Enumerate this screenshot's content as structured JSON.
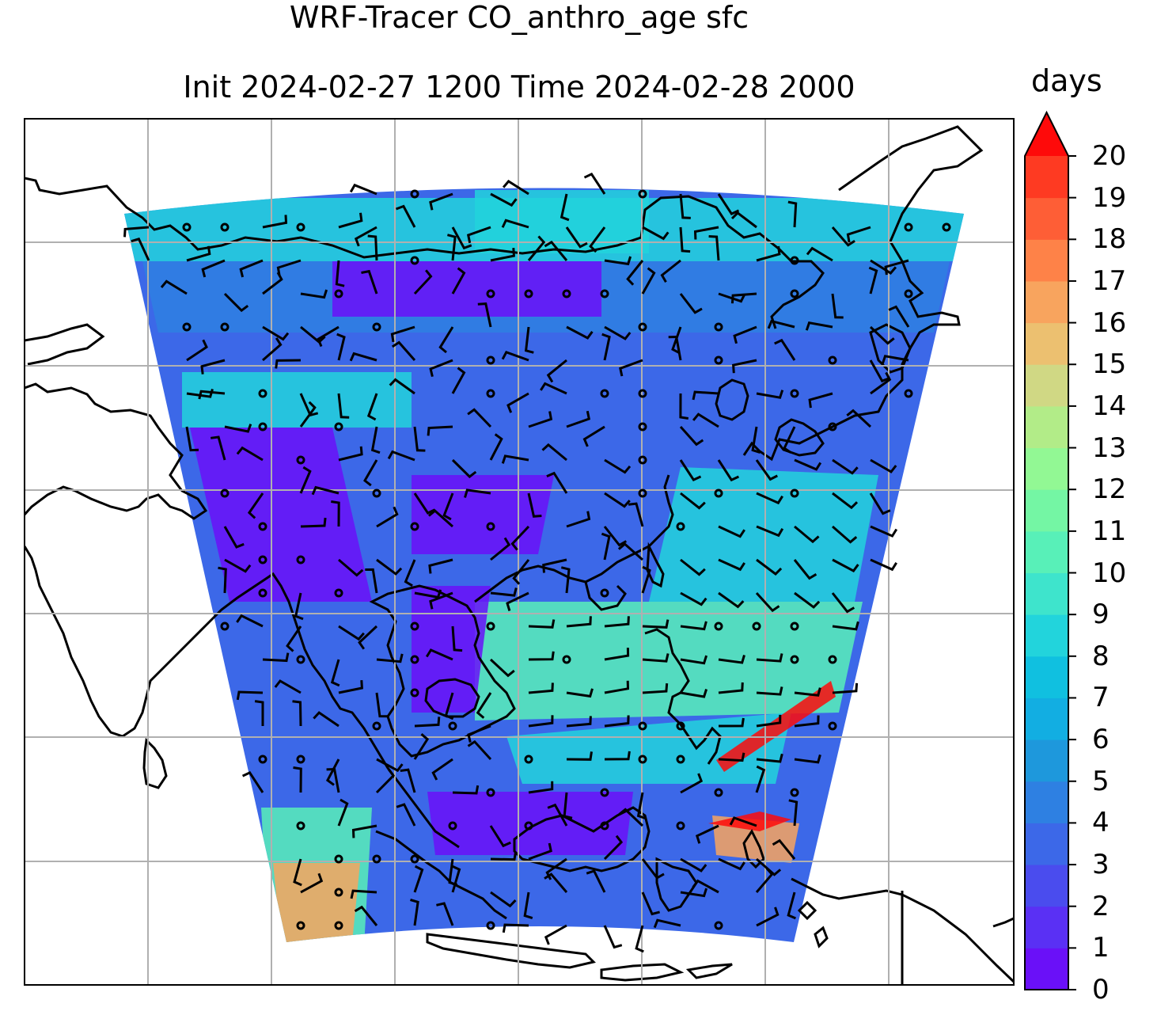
{
  "title_line1": "WRF-Tracer CO_anthro_age sfc",
  "title_line2": "Init 2024-02-27 1200 Time 2024-02-28 2000",
  "colorbar": {
    "unit": "days",
    "min": 0,
    "max": 20,
    "extend": "max",
    "ticks": [
      "0",
      "1",
      "2",
      "3",
      "4",
      "5",
      "6",
      "7",
      "8",
      "9",
      "10",
      "11",
      "12",
      "13",
      "14",
      "15",
      "16",
      "17",
      "18",
      "19",
      "20"
    ],
    "colors": [
      "#6a10f8",
      "#5a30f4",
      "#4a4cee",
      "#3c68e8",
      "#2e80e2",
      "#1e98dc",
      "#12aee2",
      "#10c0e0",
      "#22d4dc",
      "#3ee4cc",
      "#58f0b8",
      "#74f6a4",
      "#92f894",
      "#b2ec88",
      "#d0d884",
      "#ecc070",
      "#f8a45e",
      "#fe8248",
      "#fe5e36",
      "#fe3a22",
      "#fe1210"
    ],
    "overflow_color": "#fe0a0a"
  },
  "map": {
    "projection": "lambert-conformal",
    "gridlines": true,
    "field_colors": {
      "low_age": "#6a10f8",
      "mid_low": "#2e80e2",
      "mid": "#22d4dc",
      "high_mid": "#58f0b8",
      "high": "#f8a45e",
      "extreme": "#fe0a0a"
    },
    "overlay": "wind barbs"
  }
}
